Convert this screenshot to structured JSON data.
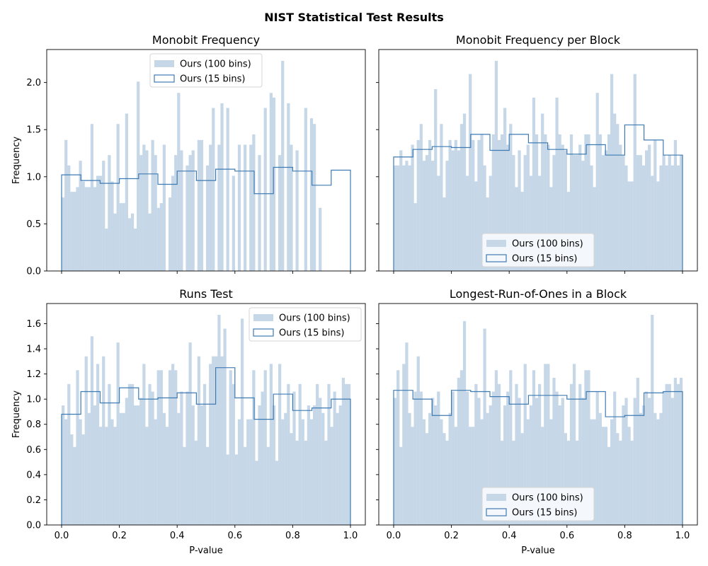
{
  "figure": {
    "suptitle": "NIST Statistical Test Results"
  },
  "chart_data": [
    {
      "type": "histogram",
      "title": "Monobit Frequency",
      "xlabel": "",
      "ylabel": "Frequency",
      "xlim": [
        0,
        1
      ],
      "ylim": [
        0,
        2.35
      ],
      "xticks": [
        0.0,
        0.2,
        0.4,
        0.6,
        0.8,
        1.0
      ],
      "yticks": [
        0.0,
        0.5,
        1.0,
        1.5,
        2.0
      ],
      "show_xtick_labels": false,
      "show_ytick_labels": true,
      "legend": {
        "position": "top-center",
        "entries": [
          "Ours (100 bins)",
          "Ours (15 bins)"
        ]
      },
      "series": [
        {
          "name": "Ours (100 bins)",
          "style": "filled",
          "color": "#c6d7e8",
          "bin_edges": [
            0,
            1
          ],
          "values": [
            0.78,
            1.39,
            1.12,
            0.84,
            0.84,
            0.89,
            1.17,
            0.95,
            0.89,
            0.89,
            1.56,
            0.89,
            1.01,
            1.01,
            1.17,
            0.45,
            1.23,
            0.95,
            0.61,
            1.56,
            0.72,
            0.72,
            1.67,
            0.56,
            0.61,
            0.45,
            2.01,
            1.23,
            1.34,
            1.28,
            0.61,
            1.39,
            1.23,
            0.67,
            0.72,
            1.34,
            0.0,
            0.78,
            1.01,
            1.23,
            1.89,
            1.28,
            0.0,
            1.12,
            1.23,
            1.28,
            0.0,
            1.39,
            1.39,
            0.0,
            1.12,
            1.34,
            1.73,
            0.0,
            1.34,
            1.78,
            0.0,
            1.73,
            0.0,
            1.01,
            0.0,
            1.34,
            0.0,
            1.34,
            0.0,
            1.34,
            1.45,
            0.0,
            1.23,
            0.0,
            1.73,
            0.0,
            1.89,
            1.84,
            0.0,
            1.23,
            2.23,
            0.0,
            1.78,
            1.34,
            0.0,
            1.28,
            0.0,
            0.0,
            1.73,
            0.0,
            1.62,
            1.56,
            0.0,
            0.67,
            0.0,
            0.0,
            0.0,
            0.0,
            0.0,
            0.0,
            0.0,
            0.0,
            0.0,
            0.0
          ]
        },
        {
          "name": "Ours (15 bins)",
          "style": "step",
          "color": "#3f7bb3",
          "bin_edges": [
            0,
            1
          ],
          "values": [
            1.02,
            0.96,
            0.93,
            0.98,
            1.03,
            0.92,
            1.06,
            0.96,
            1.08,
            1.06,
            0.82,
            1.1,
            1.06,
            0.91,
            1.07
          ]
        }
      ]
    },
    {
      "type": "histogram",
      "title": "Monobit Frequency per Block",
      "xlabel": "",
      "ylabel": "",
      "xlim": [
        0,
        1
      ],
      "ylim": [
        0,
        2.35
      ],
      "xticks": [
        0.0,
        0.2,
        0.4,
        0.6,
        0.8,
        1.0
      ],
      "yticks": [
        0.0,
        0.5,
        1.0,
        1.5,
        2.0
      ],
      "show_xtick_labels": false,
      "show_ytick_labels": false,
      "legend": {
        "position": "lower-center",
        "entries": [
          "Ours (100 bins)",
          "Ours (15 bins)"
        ]
      },
      "series": [
        {
          "name": "Ours (100 bins)",
          "style": "filled",
          "color": "#c6d7e8",
          "bin_edges": [
            0,
            1
          ],
          "values": [
            1.12,
            1.12,
            1.28,
            1.12,
            1.17,
            1.12,
            1.34,
            0.72,
            1.39,
            1.56,
            1.17,
            1.23,
            1.39,
            1.17,
            1.93,
            1.01,
            1.56,
            0.78,
            1.17,
            1.39,
            1.28,
            1.39,
            1.28,
            1.56,
            1.67,
            1.01,
            2.09,
            1.39,
            0.95,
            1.39,
            1.45,
            1.12,
            0.78,
            1.01,
            1.45,
            2.23,
            1.39,
            1.45,
            1.73,
            1.34,
            1.56,
            1.23,
            0.89,
            1.28,
            0.84,
            1.23,
            1.34,
            1.01,
            1.84,
            1.45,
            1.01,
            1.67,
            1.45,
            1.34,
            0.89,
            1.23,
            1.84,
            1.45,
            1.34,
            1.28,
            0.84,
            1.45,
            1.23,
            1.23,
            1.34,
            1.17,
            1.45,
            1.45,
            1.12,
            0.89,
            1.89,
            1.45,
            1.23,
            1.28,
            1.45,
            2.09,
            1.67,
            1.56,
            1.34,
            1.23,
            1.12,
            0.95,
            0.95,
            2.09,
            1.23,
            1.23,
            1.12,
            1.28,
            1.34,
            1.01,
            1.39,
            0.95,
            1.12,
            1.23,
            1.12,
            1.23,
            1.12,
            1.39,
            1.12,
            1.23
          ]
        },
        {
          "name": "Ours (15 bins)",
          "style": "step",
          "color": "#3f7bb3",
          "bin_edges": [
            0,
            1
          ],
          "values": [
            1.21,
            1.29,
            1.32,
            1.31,
            1.45,
            1.28,
            1.45,
            1.36,
            1.29,
            1.24,
            1.34,
            1.23,
            1.55,
            1.39,
            1.23
          ]
        }
      ]
    },
    {
      "type": "histogram",
      "title": "Runs Test",
      "xlabel": "P-value",
      "ylabel": "Frequency",
      "xlim": [
        0,
        1
      ],
      "ylim": [
        0,
        1.76
      ],
      "xticks": [
        0.0,
        0.2,
        0.4,
        0.6,
        0.8,
        1.0
      ],
      "yticks": [
        0.0,
        0.2,
        0.4,
        0.6,
        0.8,
        1.0,
        1.2,
        1.4,
        1.6
      ],
      "show_xtick_labels": true,
      "show_ytick_labels": true,
      "legend": {
        "position": "top-right",
        "entries": [
          "Ours (100 bins)",
          "Ours (15 bins)"
        ]
      },
      "series": [
        {
          "name": "Ours (100 bins)",
          "style": "filled",
          "color": "#c6d7e8",
          "bin_edges": [
            0,
            1
          ],
          "values": [
            0.95,
            0.84,
            1.12,
            0.72,
            0.62,
            1.23,
            0.84,
            0.72,
            1.34,
            0.89,
            1.5,
            0.95,
            1.28,
            0.78,
            1.34,
            0.78,
            1.12,
            0.84,
            0.78,
            1.45,
            0.89,
            0.89,
            1.01,
            1.12,
            1.12,
            0.95,
            0.95,
            1.01,
            1.28,
            0.78,
            1.12,
            1.06,
            0.84,
            1.23,
            1.23,
            0.89,
            0.78,
            1.23,
            1.28,
            1.23,
            0.89,
            1.06,
            0.62,
            1.06,
            1.45,
            0.95,
            0.67,
            1.34,
            0.95,
            1.12,
            0.62,
            1.28,
            1.34,
            1.34,
            1.67,
            1.34,
            1.56,
            0.56,
            1.23,
            1.12,
            0.56,
            0.84,
            1.64,
            0.62,
            0.84,
            0.84,
            1.23,
            0.51,
            0.95,
            1.06,
            1.23,
            0.62,
            1.28,
            0.95,
            0.51,
            1.28,
            0.84,
            0.89,
            1.12,
            0.73,
            1.06,
            0.67,
            1.12,
            0.84,
            0.67,
            0.95,
            0.84,
            0.95,
            1.12,
            1.01,
            0.89,
            0.67,
            1.12,
            0.78,
            1.06,
            0.89,
            0.95,
            1.17,
            1.12,
            1.12
          ]
        },
        {
          "name": "Ours (15 bins)",
          "style": "step",
          "color": "#3f7bb3",
          "bin_edges": [
            0,
            1
          ],
          "values": [
            0.88,
            1.06,
            0.97,
            1.09,
            1.0,
            1.01,
            1.05,
            0.96,
            1.25,
            1.01,
            0.84,
            1.04,
            0.91,
            0.93,
            1.0
          ]
        }
      ]
    },
    {
      "type": "histogram",
      "title": "Longest-Run-of-Ones in a Block",
      "xlabel": "P-value",
      "ylabel": "",
      "xlim": [
        0,
        1
      ],
      "ylim": [
        0,
        1.76
      ],
      "xticks": [
        0.0,
        0.2,
        0.4,
        0.6,
        0.8,
        1.0
      ],
      "yticks": [
        0.0,
        0.2,
        0.4,
        0.6,
        0.8,
        1.0,
        1.2,
        1.4,
        1.6
      ],
      "show_xtick_labels": true,
      "show_ytick_labels": false,
      "legend": {
        "position": "lower-center",
        "entries": [
          "Ours (100 bins)",
          "Ours (15 bins)"
        ]
      },
      "series": [
        {
          "name": "Ours (100 bins)",
          "style": "filled",
          "color": "#c6d7e8",
          "bin_edges": [
            0,
            1
          ],
          "values": [
            1.01,
            1.23,
            0.62,
            1.28,
            1.45,
            0.89,
            0.78,
            1.06,
            1.34,
            1.06,
            0.84,
            0.73,
            0.89,
            1.01,
            0.95,
            1.06,
            0.84,
            0.73,
            0.67,
            0.89,
            1.06,
            0.78,
            1.17,
            1.23,
            1.62,
            1.06,
            0.78,
            0.78,
            1.12,
            1.01,
            0.84,
            1.56,
            0.89,
            0.95,
            1.06,
            1.23,
            1.12,
            0.67,
            0.95,
            1.06,
            1.23,
            0.67,
            1.12,
            1.01,
            0.73,
            1.28,
            0.84,
            0.95,
            1.23,
            1.01,
            1.12,
            0.78,
            1.28,
            1.28,
            0.84,
            1.17,
            1.06,
            0.95,
            1.01,
            0.73,
            0.67,
            1.12,
            1.28,
            0.67,
            1.12,
            1.01,
            1.23,
            1.23,
            0.84,
            0.84,
            1.06,
            0.89,
            0.78,
            0.78,
            0.62,
            0.84,
            1.06,
            0.73,
            0.67,
            0.95,
            1.01,
            0.78,
            0.67,
            1.01,
            1.17,
            0.89,
            0.95,
            1.06,
            1.01,
            1.67,
            0.89,
            0.84,
            0.89,
            1.06,
            1.12,
            1.12,
            1.01,
            1.17,
            1.12,
            1.17
          ]
        },
        {
          "name": "Ours (15 bins)",
          "style": "step",
          "color": "#3f7bb3",
          "bin_edges": [
            0,
            1
          ],
          "values": [
            1.07,
            1.0,
            0.87,
            1.07,
            1.06,
            1.02,
            0.96,
            1.03,
            1.03,
            1.0,
            1.06,
            0.86,
            0.87,
            1.05,
            1.06
          ]
        }
      ]
    }
  ]
}
